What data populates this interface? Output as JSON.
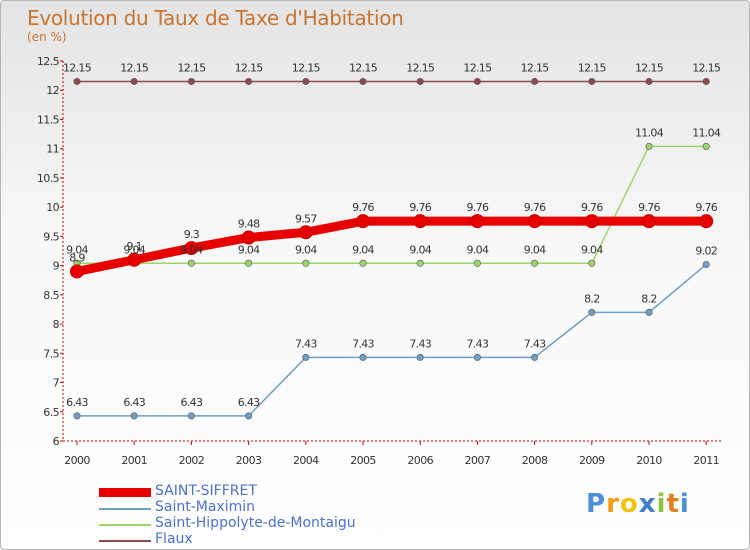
{
  "chart_data": {
    "type": "line",
    "title": "Evolution du Taux de Taxe d'Habitation",
    "subtitle": "(en %)",
    "xlabel": "",
    "ylabel": "",
    "categories": [
      "2000",
      "2001",
      "2002",
      "2003",
      "2004",
      "2005",
      "2006",
      "2007",
      "2008",
      "2009",
      "2010",
      "2011"
    ],
    "ylim": [
      6,
      12.5
    ],
    "yticks": [
      "6",
      "6.5",
      "7",
      "7.5",
      "8",
      "8.5",
      "9",
      "9.5",
      "10",
      "10.5",
      "11",
      "11.5",
      "12",
      "12.5"
    ],
    "legend_position": "bottom-left",
    "series": [
      {
        "name": "SAINT-SIFFRET",
        "color": "#e80000",
        "values": [
          8.9,
          9.1,
          9.3,
          9.48,
          9.57,
          9.76,
          9.76,
          9.76,
          9.76,
          9.76,
          9.76,
          9.76
        ],
        "labels": [
          "8.9",
          "9.1",
          "9.3",
          "9.48",
          "9.57",
          "9.76",
          "9.76",
          "9.76",
          "9.76",
          "9.76",
          "9.76",
          "9.76"
        ]
      },
      {
        "name": "Saint-Maximin",
        "color": "#6f9fc9",
        "values": [
          6.43,
          6.43,
          6.43,
          6.43,
          7.43,
          7.43,
          7.43,
          7.43,
          7.43,
          8.2,
          8.2,
          9.02
        ],
        "labels": [
          "6.43",
          "6.43",
          "6.43",
          "6.43",
          "7.43",
          "7.43",
          "7.43",
          "7.43",
          "7.43",
          "8.2",
          "8.2",
          "9.02"
        ]
      },
      {
        "name": "Saint-Hippolyte-de-Montaigu",
        "color": "#9ad66a",
        "values": [
          9.04,
          9.04,
          9.04,
          9.04,
          9.04,
          9.04,
          9.04,
          9.04,
          9.04,
          9.04,
          11.04,
          11.04
        ],
        "labels": [
          "9.04",
          "9.04",
          "9.04",
          "9.04",
          "9.04",
          "9.04",
          "9.04",
          "9.04",
          "9.04",
          "9.04",
          "11.04",
          "11.04"
        ]
      },
      {
        "name": "Flaux",
        "color": "#8c4a4a",
        "values": [
          12.15,
          12.15,
          12.15,
          12.15,
          12.15,
          12.15,
          12.15,
          12.15,
          12.15,
          12.15,
          12.15,
          12.15
        ],
        "labels": [
          "12.15",
          "12.15",
          "12.15",
          "12.15",
          "12.15",
          "12.15",
          "12.15",
          "12.15",
          "12.15",
          "12.15",
          "12.15",
          "12.15"
        ]
      }
    ]
  },
  "branding": {
    "logo_letters": [
      "P",
      "r",
      "o",
      "x",
      "i",
      "t",
      "i"
    ],
    "logo_colors": [
      "#4a90d9",
      "#f39c12",
      "#f1c40f",
      "#3d7fc4",
      "#8cc63f",
      "#e67e22",
      "#4a90d9"
    ]
  }
}
